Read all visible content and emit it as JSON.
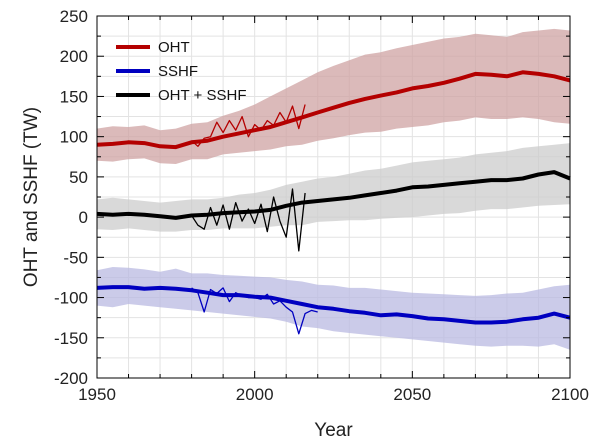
{
  "chart_data": {
    "type": "line",
    "title": "",
    "xlabel": "Year",
    "ylabel": "OHT and SSHF (TW)",
    "xlim": [
      1950,
      2100
    ],
    "ylim": [
      -200,
      250
    ],
    "xticks": [
      1950,
      2000,
      2050,
      2100
    ],
    "yticks": [
      -200,
      -150,
      -100,
      -50,
      0,
      50,
      100,
      150,
      200,
      250
    ],
    "x_minor_step": 10,
    "y_minor_step": 25,
    "grid": true,
    "legend_position": "top-left",
    "legend": [
      {
        "label": "OHT",
        "color": "#b40000"
      },
      {
        "label": "SSHF",
        "color": "#0000c0"
      },
      {
        "label": "OHT + SSHF",
        "color": "#000000"
      }
    ],
    "series": [
      {
        "name": "OHT",
        "color": "#b40000",
        "band_color": "#cfa3a3",
        "mean": {
          "x": [
            1950,
            1955,
            1960,
            1965,
            1970,
            1975,
            1980,
            1985,
            1990,
            1995,
            2000,
            2005,
            2010,
            2015,
            2020,
            2025,
            2030,
            2035,
            2040,
            2045,
            2050,
            2055,
            2060,
            2065,
            2070,
            2075,
            2080,
            2085,
            2090,
            2095,
            2100
          ],
          "y": [
            90,
            91,
            93,
            92,
            88,
            87,
            93,
            95,
            100,
            104,
            108,
            112,
            118,
            124,
            130,
            136,
            142,
            147,
            151,
            155,
            160,
            163,
            167,
            172,
            178,
            177,
            175,
            180,
            178,
            175,
            170
          ]
        },
        "band_upper": [
          110,
          113,
          112,
          114,
          108,
          110,
          116,
          118,
          126,
          132,
          140,
          150,
          160,
          170,
          180,
          188,
          195,
          202,
          205,
          210,
          214,
          218,
          222,
          224,
          228,
          226,
          224,
          230,
          232,
          234,
          232
        ],
        "band_lower": [
          70,
          69,
          72,
          73,
          67,
          66,
          72,
          72,
          78,
          80,
          82,
          84,
          88,
          90,
          95,
          98,
          102,
          105,
          106,
          110,
          112,
          114,
          118,
          120,
          124,
          122,
          122,
          124,
          122,
          118,
          116
        ],
        "observed": {
          "x": [
            1980,
            1982,
            1984,
            1986,
            1988,
            1990,
            1992,
            1994,
            1996,
            1998,
            2000,
            2002,
            2004,
            2006,
            2008,
            2010,
            2012,
            2014,
            2016
          ],
          "y": [
            95,
            88,
            98,
            100,
            118,
            105,
            120,
            108,
            125,
            100,
            115,
            108,
            120,
            114,
            130,
            118,
            138,
            110,
            140
          ]
        }
      },
      {
        "name": "SSHF",
        "color": "#0000c0",
        "band_color": "#b9b9e2",
        "mean": {
          "x": [
            1950,
            1955,
            1960,
            1965,
            1970,
            1975,
            1980,
            1985,
            1990,
            1995,
            2000,
            2005,
            2010,
            2015,
            2020,
            2025,
            2030,
            2035,
            2040,
            2045,
            2050,
            2055,
            2060,
            2065,
            2070,
            2075,
            2080,
            2085,
            2090,
            2095,
            2100
          ],
          "y": [
            -88,
            -87,
            -87,
            -89,
            -88,
            -89,
            -91,
            -94,
            -97,
            -97,
            -99,
            -100,
            -104,
            -108,
            -112,
            -114,
            -117,
            -119,
            -122,
            -121,
            -123,
            -126,
            -127,
            -129,
            -131,
            -131,
            -130,
            -127,
            -125,
            -120,
            -125
          ]
        },
        "band_upper": [
          -66,
          -62,
          -63,
          -65,
          -68,
          -64,
          -70,
          -70,
          -72,
          -73,
          -74,
          -75,
          -78,
          -80,
          -84,
          -85,
          -88,
          -88,
          -90,
          -92,
          -94,
          -95,
          -96,
          -97,
          -98,
          -97,
          -95,
          -94,
          -90,
          -86,
          -84
        ],
        "band_lower": [
          -110,
          -112,
          -108,
          -110,
          -112,
          -114,
          -116,
          -118,
          -120,
          -122,
          -124,
          -126,
          -130,
          -136,
          -138,
          -142,
          -144,
          -146,
          -148,
          -150,
          -152,
          -154,
          -156,
          -158,
          -160,
          -161,
          -160,
          -160,
          -161,
          -158,
          -165
        ],
        "observed": {
          "x": [
            1980,
            1982,
            1984,
            1986,
            1988,
            1990,
            1992,
            1994,
            1996,
            1998,
            2000,
            2002,
            2004,
            2006,
            2008,
            2010,
            2012,
            2014,
            2016,
            2018,
            2020
          ],
          "y": [
            -88,
            -94,
            -118,
            -90,
            -95,
            -88,
            -105,
            -94,
            -98,
            -100,
            -100,
            -102,
            -96,
            -108,
            -104,
            -112,
            -118,
            -145,
            -120,
            -116,
            -118
          ]
        }
      },
      {
        "name": "OHT + SSHF",
        "color": "#000000",
        "band_color": "#cccccc",
        "mean": {
          "x": [
            1950,
            1955,
            1960,
            1965,
            1970,
            1975,
            1980,
            1985,
            1990,
            1995,
            2000,
            2005,
            2010,
            2015,
            2020,
            2025,
            2030,
            2035,
            2040,
            2045,
            2050,
            2055,
            2060,
            2065,
            2070,
            2075,
            2080,
            2085,
            2090,
            2095,
            2100
          ],
          "y": [
            4,
            3,
            4,
            3,
            1,
            -1,
            2,
            3,
            5,
            6,
            7,
            9,
            14,
            18,
            20,
            22,
            24,
            27,
            30,
            33,
            37,
            38,
            40,
            42,
            44,
            46,
            46,
            48,
            53,
            56,
            48
          ]
        },
        "band_upper": [
          22,
          24,
          22,
          20,
          18,
          20,
          22,
          22,
          24,
          28,
          30,
          34,
          40,
          44,
          48,
          50,
          54,
          58,
          60,
          64,
          68,
          70,
          72,
          74,
          78,
          80,
          82,
          86,
          88,
          90,
          92
        ],
        "band_lower": [
          -15,
          -16,
          -14,
          -16,
          -18,
          -18,
          -16,
          -16,
          -14,
          -14,
          -14,
          -12,
          -10,
          -10,
          -6,
          -5,
          -4,
          -4,
          -2,
          -1,
          0,
          2,
          4,
          5,
          8,
          10,
          10,
          12,
          14,
          15,
          16
        ],
        "observed": {
          "x": [
            1980,
            1982,
            1984,
            1986,
            1988,
            1990,
            1992,
            1994,
            1996,
            1998,
            2000,
            2002,
            2004,
            2006,
            2008,
            2010,
            2012,
            2014,
            2016
          ],
          "y": [
            2,
            -10,
            -15,
            12,
            -10,
            15,
            -15,
            18,
            -5,
            10,
            -8,
            16,
            -18,
            25,
            -5,
            -25,
            35,
            -42,
            30
          ]
        }
      }
    ]
  }
}
